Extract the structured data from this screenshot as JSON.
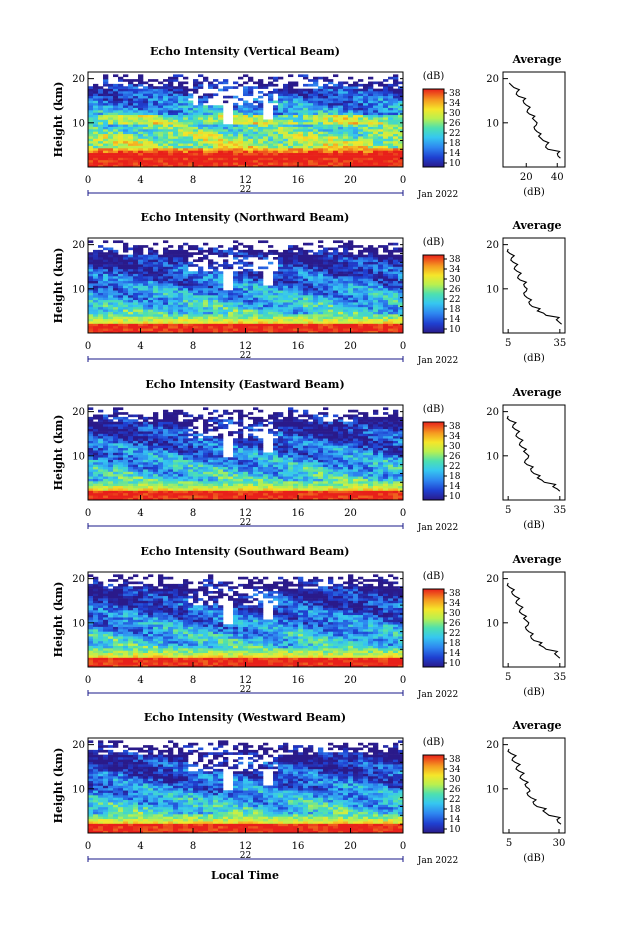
{
  "chart_data": [
    {
      "type": "heatmap",
      "beam": "Vertical",
      "title": "Echo Intensity (Vertical Beam)",
      "ylabel": "Height (km)",
      "x_ticks": [
        "0",
        "4",
        "8",
        "12",
        "16",
        "20",
        "0"
      ],
      "y_ticks": [
        "20",
        "10"
      ],
      "date_label": "22",
      "month_label": "Jan 2022",
      "colorbar": {
        "unit": "(dB)",
        "ticks": [
          "38",
          "34",
          "30",
          "26",
          "22",
          "18",
          "14",
          "10"
        ]
      },
      "profile": {
        "title": "Average",
        "xlabel": "(dB)",
        "x_ticks": [
          "20",
          "40"
        ],
        "xlim": [
          5,
          45
        ],
        "y_ticks": [
          "20",
          "10"
        ],
        "heights_km": [
          2,
          3,
          4,
          5,
          6,
          7,
          8,
          9,
          10,
          11,
          12,
          13,
          14,
          15,
          16,
          17,
          18,
          19
        ],
        "values_db": [
          42,
          40,
          34,
          33,
          31,
          28,
          27,
          25,
          27,
          24,
          22,
          21,
          20,
          18,
          15,
          14,
          12,
          9
        ]
      }
    },
    {
      "type": "heatmap",
      "beam": "Northward",
      "title": "Echo Intensity (Northward Beam)",
      "ylabel": "Height (km)",
      "x_ticks": [
        "0",
        "4",
        "8",
        "12",
        "16",
        "20",
        "0"
      ],
      "y_ticks": [
        "20",
        "10"
      ],
      "date_label": "22",
      "month_label": "Jan 2022",
      "colorbar": {
        "unit": "(dB)",
        "ticks": [
          "38",
          "34",
          "30",
          "26",
          "22",
          "18",
          "14",
          "10"
        ]
      },
      "profile": {
        "title": "Average",
        "xlabel": "(dB)",
        "x_ticks": [
          "5",
          "35"
        ],
        "xlim": [
          2,
          38
        ],
        "y_ticks": [
          "20",
          "10"
        ],
        "heights_km": [
          2,
          3,
          4,
          5,
          6,
          7,
          8,
          9,
          10,
          11,
          12,
          13,
          14,
          15,
          16,
          17,
          18,
          19
        ],
        "values_db": [
          36,
          33,
          27,
          22,
          19,
          17,
          16,
          14,
          16,
          14,
          12,
          11,
          10,
          9,
          8,
          7,
          6,
          5
        ]
      }
    },
    {
      "type": "heatmap",
      "beam": "Eastward",
      "title": "Echo Intensity (Eastward Beam)",
      "ylabel": "Height (km)",
      "x_ticks": [
        "0",
        "4",
        "8",
        "12",
        "16",
        "20",
        "0"
      ],
      "y_ticks": [
        "20",
        "10"
      ],
      "date_label": "22",
      "month_label": "Jan 2022",
      "colorbar": {
        "unit": "(dB)",
        "ticks": [
          "38",
          "34",
          "30",
          "26",
          "22",
          "18",
          "14",
          "10"
        ]
      },
      "profile": {
        "title": "Average",
        "xlabel": "(dB)",
        "x_ticks": [
          "5",
          "35"
        ],
        "xlim": [
          2,
          38
        ],
        "y_ticks": [
          "20",
          "10"
        ],
        "heights_km": [
          2,
          3,
          4,
          5,
          6,
          7,
          8,
          9,
          10,
          11,
          12,
          13,
          14,
          15,
          16,
          17,
          18,
          19
        ],
        "values_db": [
          35,
          31,
          26,
          22,
          20,
          18,
          16,
          15,
          17,
          14,
          13,
          12,
          11,
          10,
          9,
          8,
          6,
          5
        ]
      }
    },
    {
      "type": "heatmap",
      "beam": "Southward",
      "title": "Echo Intensity (Southward Beam)",
      "ylabel": "Height (km)",
      "x_ticks": [
        "0",
        "4",
        "8",
        "12",
        "16",
        "20",
        "0"
      ],
      "y_ticks": [
        "20",
        "10"
      ],
      "date_label": "22",
      "month_label": "Jan 2022",
      "colorbar": {
        "unit": "(dB)",
        "ticks": [
          "38",
          "34",
          "30",
          "26",
          "22",
          "18",
          "14",
          "10"
        ]
      },
      "profile": {
        "title": "Average",
        "xlabel": "(dB)",
        "x_ticks": [
          "5",
          "35"
        ],
        "xlim": [
          2,
          38
        ],
        "y_ticks": [
          "20",
          "10"
        ],
        "heights_km": [
          2,
          3,
          4,
          5,
          6,
          7,
          8,
          9,
          10,
          11,
          12,
          13,
          14,
          15,
          16,
          17,
          18,
          19
        ],
        "values_db": [
          35,
          32,
          27,
          23,
          20,
          18,
          17,
          15,
          17,
          14,
          13,
          12,
          11,
          10,
          9,
          7,
          6,
          5
        ]
      }
    },
    {
      "type": "heatmap",
      "beam": "Westward",
      "title": "Echo Intensity (Westward Beam)",
      "ylabel": "Height (km)",
      "x_ticks": [
        "0",
        "4",
        "8",
        "12",
        "16",
        "20",
        "0"
      ],
      "y_ticks": [
        "20",
        "10"
      ],
      "date_label": "22",
      "month_label": "Jan 2022",
      "colorbar": {
        "unit": "(dB)",
        "ticks": [
          "38",
          "34",
          "30",
          "26",
          "22",
          "18",
          "14",
          "10"
        ]
      },
      "profile": {
        "title": "Average",
        "xlabel": "(dB)",
        "x_ticks": [
          "5",
          "30"
        ],
        "xlim": [
          2,
          33
        ],
        "y_ticks": [
          "20",
          "10"
        ],
        "heights_km": [
          2,
          3,
          4,
          5,
          6,
          7,
          8,
          9,
          10,
          11,
          12,
          13,
          14,
          15,
          16,
          17,
          18,
          19
        ],
        "values_db": [
          31,
          29,
          25,
          22,
          19,
          17,
          16,
          14,
          15,
          13,
          12,
          11,
          10,
          9,
          8,
          7,
          6,
          5
        ]
      }
    }
  ],
  "footer": {
    "xlabel": "Local Time"
  }
}
